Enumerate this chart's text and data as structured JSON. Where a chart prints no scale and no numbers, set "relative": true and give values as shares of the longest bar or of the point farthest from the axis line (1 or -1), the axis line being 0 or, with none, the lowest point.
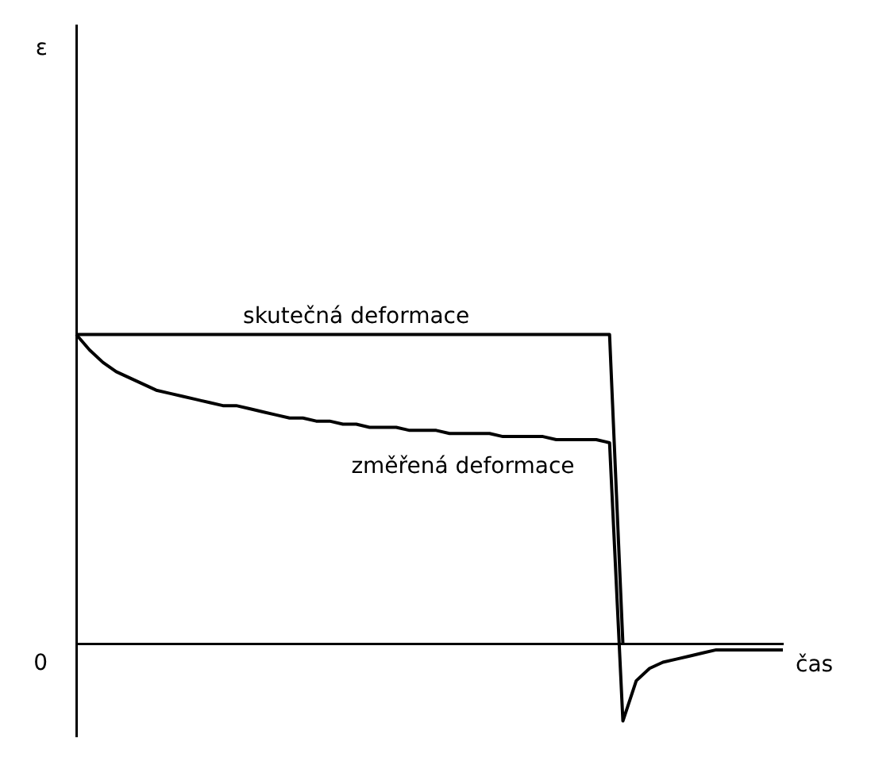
{
  "chart_data": {
    "type": "line",
    "relative": true,
    "xlabel": "čas",
    "annotations": [
      "0",
      "ε"
    ],
    "legend": false,
    "marker": "none",
    "line_style": "solid",
    "categories": [
      null,
      null,
      null,
      null,
      null,
      null,
      null,
      null,
      null,
      null,
      null,
      null,
      null,
      null,
      null,
      null,
      null,
      null,
      null,
      null,
      null,
      null,
      null,
      null,
      null,
      null,
      null,
      null,
      null,
      null,
      null,
      null,
      null,
      null,
      null,
      null,
      null,
      null,
      null,
      null,
      null,
      null,
      null,
      null,
      null,
      null,
      null,
      null,
      null,
      null,
      null,
      null,
      null,
      null
    ],
    "series": [
      {
        "name": "skutečná deformace",
        "color": "#000000",
        "values": [
          1,
          1,
          1,
          1,
          1,
          1,
          1,
          1,
          1,
          1,
          1,
          1,
          1,
          1,
          1,
          1,
          1,
          1,
          1,
          1,
          1,
          1,
          1,
          1,
          1,
          1,
          1,
          1,
          1,
          1,
          1,
          1,
          1,
          1,
          1,
          1,
          1,
          1,
          1,
          1,
          1,
          0,
          null,
          null,
          null,
          null,
          null,
          null,
          null,
          null,
          null,
          null,
          null,
          null
        ]
      },
      {
        "name": "změřená deformace",
        "color": "#000000",
        "values": [
          1,
          0.95,
          0.91,
          0.88,
          0.86,
          0.84,
          0.82,
          0.81,
          0.8,
          0.79,
          0.78,
          0.77,
          0.77,
          0.76,
          0.75,
          0.74,
          0.73,
          0.73,
          0.72,
          0.72,
          0.71,
          0.71,
          0.7,
          0.7,
          0.7,
          0.69,
          0.69,
          0.69,
          0.68,
          0.68,
          0.68,
          0.68,
          0.67,
          0.67,
          0.67,
          0.67,
          0.66,
          0.66,
          0.66,
          0.66,
          0.65,
          -0.25,
          -0.12,
          -0.08,
          -0.06,
          -0.05,
          -0.04,
          -0.03,
          -0.02,
          -0.02,
          -0.02,
          -0.02,
          -0.02,
          -0.02
        ]
      }
    ]
  }
}
